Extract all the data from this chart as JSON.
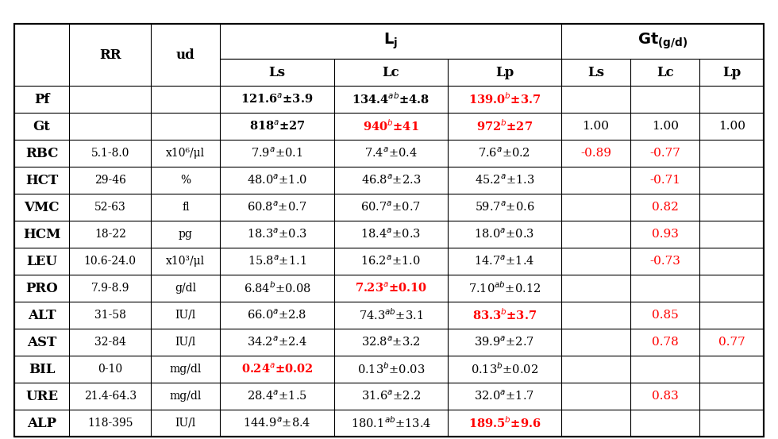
{
  "rows": [
    {
      "label": "Pf",
      "RR": "",
      "ud": "",
      "Lj_Ls": {
        "text": "121.6",
        "sup": "a",
        "pm": "3.9",
        "bold": true,
        "color": "black"
      },
      "Lj_Lc": {
        "text": "134.4",
        "sup": "ab",
        "pm": "4.8",
        "bold": true,
        "color": "black"
      },
      "Lj_Lp": {
        "text": "139.0",
        "sup": "b",
        "pm": "3.7",
        "bold": true,
        "color": "red"
      },
      "Gt_Ls": "",
      "Gt_Lc": "",
      "Gt_Lp": ""
    },
    {
      "label": "Gt",
      "RR": "",
      "ud": "",
      "Lj_Ls": {
        "text": "818",
        "sup": "a",
        "pm": "27",
        "bold": true,
        "color": "black"
      },
      "Lj_Lc": {
        "text": "940",
        "sup": "b",
        "pm": "41",
        "bold": true,
        "color": "red"
      },
      "Lj_Lp": {
        "text": "972",
        "sup": "b",
        "pm": "27",
        "bold": true,
        "color": "red"
      },
      "Gt_Ls": "1.00",
      "Gt_Lc": "1.00",
      "Gt_Lp": "1.00"
    },
    {
      "label": "RBC",
      "RR": "5.1-8.0",
      "ud": "x10⁶/μl",
      "Lj_Ls": {
        "text": "7.9",
        "sup": "a",
        "pm": "0.1",
        "bold": false,
        "color": "black"
      },
      "Lj_Lc": {
        "text": "7.4",
        "sup": "a",
        "pm": "0.4",
        "bold": false,
        "color": "black"
      },
      "Lj_Lp": {
        "text": "7.6",
        "sup": "a",
        "pm": "0.2",
        "bold": false,
        "color": "black"
      },
      "Gt_Ls": {
        "val": "-0.89",
        "color": "red"
      },
      "Gt_Lc": {
        "val": "-0.77",
        "color": "red"
      },
      "Gt_Lp": ""
    },
    {
      "label": "HCT",
      "RR": "29-46",
      "ud": "%",
      "Lj_Ls": {
        "text": "48.0",
        "sup": "a",
        "pm": "1.0",
        "bold": false,
        "color": "black"
      },
      "Lj_Lc": {
        "text": "46.8",
        "sup": "a",
        "pm": "2.3",
        "bold": false,
        "color": "black"
      },
      "Lj_Lp": {
        "text": "45.2",
        "sup": "a",
        "pm": "1.3",
        "bold": false,
        "color": "black"
      },
      "Gt_Ls": "",
      "Gt_Lc": {
        "val": "-0.71",
        "color": "red"
      },
      "Gt_Lp": ""
    },
    {
      "label": "VMC",
      "RR": "52-63",
      "ud": "fl",
      "Lj_Ls": {
        "text": "60.8",
        "sup": "a",
        "pm": "0.7",
        "bold": false,
        "color": "black"
      },
      "Lj_Lc": {
        "text": "60.7",
        "sup": "a",
        "pm": "0.7",
        "bold": false,
        "color": "black"
      },
      "Lj_Lp": {
        "text": "59.7",
        "sup": "a",
        "pm": "0.6",
        "bold": false,
        "color": "black"
      },
      "Gt_Ls": "",
      "Gt_Lc": {
        "val": "0.82",
        "color": "red"
      },
      "Gt_Lp": ""
    },
    {
      "label": "HCM",
      "RR": "18-22",
      "ud": "pg",
      "Lj_Ls": {
        "text": "18.3",
        "sup": "a",
        "pm": "0.3",
        "bold": false,
        "color": "black"
      },
      "Lj_Lc": {
        "text": "18.4",
        "sup": "a",
        "pm": "0.3",
        "bold": false,
        "color": "black"
      },
      "Lj_Lp": {
        "text": "18.0",
        "sup": "a",
        "pm": "0.3",
        "bold": false,
        "color": "black"
      },
      "Gt_Ls": "",
      "Gt_Lc": {
        "val": "0.93",
        "color": "red"
      },
      "Gt_Lp": ""
    },
    {
      "label": "LEU",
      "RR": "10.6-24.0",
      "ud": "x10³/μl",
      "Lj_Ls": {
        "text": "15.8",
        "sup": "a",
        "pm": "1.1",
        "bold": false,
        "color": "black"
      },
      "Lj_Lc": {
        "text": "16.2",
        "sup": "a",
        "pm": "1.0",
        "bold": false,
        "color": "black"
      },
      "Lj_Lp": {
        "text": "14.7",
        "sup": "a",
        "pm": "1.4",
        "bold": false,
        "color": "black"
      },
      "Gt_Ls": "",
      "Gt_Lc": {
        "val": "-0.73",
        "color": "red"
      },
      "Gt_Lp": ""
    },
    {
      "label": "PRO",
      "RR": "7.9-8.9",
      "ud": "g/dl",
      "Lj_Ls": {
        "text": "6.84",
        "sup": "b",
        "pm": "0.08",
        "bold": false,
        "color": "black"
      },
      "Lj_Lc": {
        "text": "7.23",
        "sup": "a",
        "pm": "0.10",
        "bold": true,
        "color": "red"
      },
      "Lj_Lp": {
        "text": "7.10",
        "sup": "ab",
        "pm": "0.12",
        "bold": false,
        "color": "black"
      },
      "Gt_Ls": "",
      "Gt_Lc": "",
      "Gt_Lp": ""
    },
    {
      "label": "ALT",
      "RR": "31-58",
      "ud": "IU/l",
      "Lj_Ls": {
        "text": "66.0",
        "sup": "a",
        "pm": "2.8",
        "bold": false,
        "color": "black"
      },
      "Lj_Lc": {
        "text": "74.3",
        "sup": "ab",
        "pm": "3.1",
        "bold": false,
        "color": "black"
      },
      "Lj_Lp": {
        "text": "83.3",
        "sup": "b",
        "pm": "3.7",
        "bold": true,
        "color": "red"
      },
      "Gt_Ls": "",
      "Gt_Lc": {
        "val": "0.85",
        "color": "red"
      },
      "Gt_Lp": ""
    },
    {
      "label": "AST",
      "RR": "32-84",
      "ud": "IU/l",
      "Lj_Ls": {
        "text": "34.2",
        "sup": "a",
        "pm": "2.4",
        "bold": false,
        "color": "black"
      },
      "Lj_Lc": {
        "text": "32.8",
        "sup": "a",
        "pm": "3.2",
        "bold": false,
        "color": "black"
      },
      "Lj_Lp": {
        "text": "39.9",
        "sup": "a",
        "pm": "2.7",
        "bold": false,
        "color": "black"
      },
      "Gt_Ls": "",
      "Gt_Lc": {
        "val": "0.78",
        "color": "red"
      },
      "Gt_Lp": {
        "val": "0.77",
        "color": "red"
      }
    },
    {
      "label": "BIL",
      "RR": "0-10",
      "ud": "mg/dl",
      "Lj_Ls": {
        "text": "0.24",
        "sup": "a",
        "pm": "0.02",
        "bold": true,
        "color": "red"
      },
      "Lj_Lc": {
        "text": "0.13",
        "sup": "b",
        "pm": "0.03",
        "bold": false,
        "color": "black"
      },
      "Lj_Lp": {
        "text": "0.13",
        "sup": "b",
        "pm": "0.02",
        "bold": false,
        "color": "black"
      },
      "Gt_Ls": "",
      "Gt_Lc": "",
      "Gt_Lp": ""
    },
    {
      "label": "URE",
      "RR": "21.4-64.3",
      "ud": "mg/dl",
      "Lj_Ls": {
        "text": "28.4",
        "sup": "a",
        "pm": "1.5",
        "bold": false,
        "color": "black"
      },
      "Lj_Lc": {
        "text": "31.6",
        "sup": "a",
        "pm": "2.2",
        "bold": false,
        "color": "black"
      },
      "Lj_Lp": {
        "text": "32.0",
        "sup": "a",
        "pm": "1.7",
        "bold": false,
        "color": "black"
      },
      "Gt_Ls": "",
      "Gt_Lc": {
        "val": "0.83",
        "color": "red"
      },
      "Gt_Lp": ""
    },
    {
      "label": "ALP",
      "RR": "118-395",
      "ud": "IU/l",
      "Lj_Ls": {
        "text": "144.9",
        "sup": "a",
        "pm": "8.4",
        "bold": false,
        "color": "black"
      },
      "Lj_Lc": {
        "text": "180.1",
        "sup": "ab",
        "pm": "13.4",
        "bold": false,
        "color": "black"
      },
      "Lj_Lp": {
        "text": "189.5",
        "sup": "b",
        "pm": "9.6",
        "bold": true,
        "color": "red"
      },
      "Gt_Ls": "",
      "Gt_Lc": "",
      "Gt_Lp": ""
    }
  ]
}
